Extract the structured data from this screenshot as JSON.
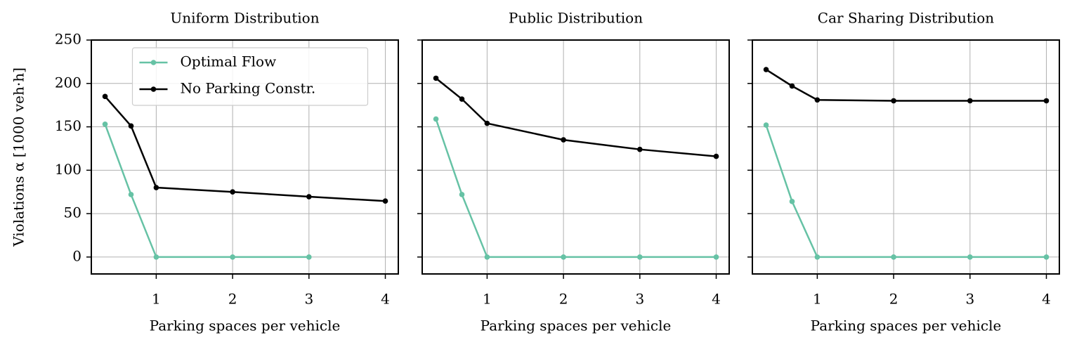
{
  "chart_data": [
    {
      "type": "line",
      "title": "Uniform Distribution",
      "xlabel": "Parking spaces per vehicle",
      "ylabel": "Violations α [1000 veh·h]",
      "x": [
        0.33,
        0.67,
        1,
        2,
        3,
        4
      ],
      "series": [
        {
          "name": "Optimal Flow",
          "color": "#66c2a5",
          "values": [
            153,
            72,
            0,
            0,
            0,
            null
          ]
        },
        {
          "name": "No Parking Constr.",
          "color": "#000000",
          "values": [
            185,
            151,
            80,
            75,
            69.5,
            64.5
          ]
        }
      ],
      "xlim": [
        0.15,
        4.17
      ],
      "xticks": [
        1,
        2,
        3,
        4
      ],
      "ylim": [
        -19.5,
        250
      ],
      "yticks": [
        0,
        50,
        100,
        150,
        200,
        250
      ],
      "grid": true,
      "legend": "upper center"
    },
    {
      "type": "line",
      "title": "Public Distribution",
      "xlabel": "Parking spaces per vehicle",
      "x": [
        0.33,
        0.67,
        1,
        2,
        3,
        4
      ],
      "series": [
        {
          "name": "Optimal Flow",
          "color": "#66c2a5",
          "values": [
            159,
            72,
            0,
            0,
            0,
            0
          ]
        },
        {
          "name": "No Parking Constr.",
          "color": "#000000",
          "values": [
            206,
            182,
            154,
            135,
            124,
            116
          ]
        }
      ],
      "xlim": [
        0.15,
        4.17
      ],
      "xticks": [
        1,
        2,
        3,
        4
      ],
      "ylim": [
        -19.5,
        250
      ],
      "grid": true,
      "sharey": true
    },
    {
      "type": "line",
      "title": "Car Sharing Distribution",
      "xlabel": "Parking spaces per vehicle",
      "x": [
        0.33,
        0.67,
        1,
        2,
        3,
        4
      ],
      "series": [
        {
          "name": "Optimal Flow",
          "color": "#66c2a5",
          "values": [
            152,
            64,
            0,
            0,
            0,
            0
          ]
        },
        {
          "name": "No Parking Constr.",
          "color": "#000000",
          "values": [
            216,
            197,
            181,
            180,
            180,
            180
          ]
        }
      ],
      "xlim": [
        0.15,
        4.17
      ],
      "xticks": [
        1,
        2,
        3,
        4
      ],
      "ylim": [
        -19.5,
        250
      ],
      "grid": true,
      "sharey": true
    }
  ]
}
